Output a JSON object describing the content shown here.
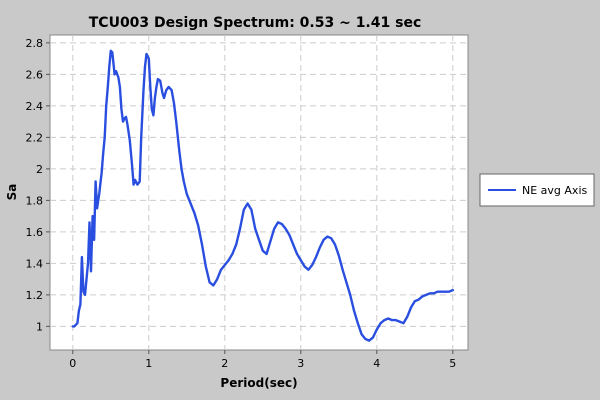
{
  "chart_data": {
    "type": "line",
    "title": "TCU003 Design Spectrum: 0.53 ~ 1.41 sec",
    "xlabel": "Period(sec)",
    "ylabel": "Sa",
    "xlim": [
      -0.3,
      5.2
    ],
    "ylim": [
      0.85,
      2.85
    ],
    "xticks": [
      0,
      1,
      2,
      3,
      4,
      5
    ],
    "xtick_labels": [
      "0",
      "1",
      "2",
      "3",
      "4",
      "5"
    ],
    "yticks": [
      1,
      1.2,
      1.4,
      1.6,
      1.8,
      2,
      2.2,
      2.4,
      2.6,
      2.8
    ],
    "ytick_labels": [
      "1",
      "1.2",
      "1.4",
      "1.6",
      "1.8",
      "2",
      "2.2",
      "2.4",
      "2.6",
      "2.8"
    ],
    "grid": true,
    "legend_position": "right",
    "colors": {
      "series": "#2a4fe0",
      "plot_bg": "#ffffff",
      "page_bg": "#c9c9c9",
      "grid": "#cccccc"
    },
    "series": [
      {
        "name": "NE avg Axis",
        "x": [
          0.0,
          0.02,
          0.04,
          0.06,
          0.08,
          0.1,
          0.12,
          0.14,
          0.16,
          0.18,
          0.2,
          0.22,
          0.24,
          0.26,
          0.28,
          0.3,
          0.32,
          0.35,
          0.38,
          0.4,
          0.42,
          0.44,
          0.46,
          0.48,
          0.5,
          0.52,
          0.55,
          0.57,
          0.6,
          0.62,
          0.64,
          0.66,
          0.68,
          0.7,
          0.72,
          0.75,
          0.78,
          0.8,
          0.82,
          0.85,
          0.88,
          0.9,
          0.93,
          0.95,
          0.97,
          1.0,
          1.02,
          1.04,
          1.06,
          1.08,
          1.1,
          1.12,
          1.15,
          1.18,
          1.2,
          1.23,
          1.26,
          1.3,
          1.33,
          1.36,
          1.4,
          1.43,
          1.46,
          1.5,
          1.55,
          1.6,
          1.65,
          1.7,
          1.75,
          1.8,
          1.85,
          1.9,
          1.95,
          2.0,
          2.05,
          2.1,
          2.15,
          2.2,
          2.25,
          2.3,
          2.35,
          2.4,
          2.45,
          2.5,
          2.55,
          2.6,
          2.65,
          2.7,
          2.75,
          2.8,
          2.85,
          2.9,
          2.95,
          3.0,
          3.05,
          3.1,
          3.15,
          3.2,
          3.25,
          3.3,
          3.35,
          3.4,
          3.45,
          3.5,
          3.55,
          3.6,
          3.65,
          3.7,
          3.75,
          3.8,
          3.85,
          3.9,
          3.95,
          4.0,
          4.05,
          4.1,
          4.15,
          4.2,
          4.25,
          4.3,
          4.35,
          4.4,
          4.45,
          4.5,
          4.55,
          4.6,
          4.65,
          4.7,
          4.75,
          4.8,
          4.85,
          4.9,
          4.95,
          5.0
        ],
        "values": [
          1.0,
          1.0,
          1.01,
          1.02,
          1.1,
          1.14,
          1.44,
          1.22,
          1.2,
          1.3,
          1.4,
          1.66,
          1.35,
          1.7,
          1.55,
          1.92,
          1.75,
          1.85,
          1.98,
          2.1,
          2.2,
          2.4,
          2.52,
          2.65,
          2.75,
          2.74,
          2.6,
          2.62,
          2.58,
          2.52,
          2.38,
          2.3,
          2.32,
          2.33,
          2.28,
          2.18,
          2.02,
          1.9,
          1.93,
          1.9,
          1.92,
          2.2,
          2.5,
          2.65,
          2.73,
          2.7,
          2.52,
          2.38,
          2.34,
          2.45,
          2.52,
          2.57,
          2.56,
          2.48,
          2.45,
          2.5,
          2.52,
          2.5,
          2.42,
          2.3,
          2.12,
          2.0,
          1.92,
          1.84,
          1.78,
          1.72,
          1.64,
          1.52,
          1.38,
          1.28,
          1.26,
          1.3,
          1.36,
          1.39,
          1.42,
          1.46,
          1.52,
          1.62,
          1.74,
          1.78,
          1.74,
          1.62,
          1.55,
          1.48,
          1.46,
          1.54,
          1.62,
          1.66,
          1.65,
          1.62,
          1.58,
          1.52,
          1.46,
          1.42,
          1.38,
          1.36,
          1.39,
          1.44,
          1.5,
          1.55,
          1.57,
          1.56,
          1.52,
          1.45,
          1.36,
          1.28,
          1.2,
          1.1,
          1.02,
          0.95,
          0.92,
          0.91,
          0.93,
          0.98,
          1.02,
          1.04,
          1.05,
          1.04,
          1.04,
          1.03,
          1.02,
          1.06,
          1.12,
          1.16,
          1.17,
          1.19,
          1.2,
          1.21,
          1.21,
          1.22,
          1.22,
          1.22,
          1.22,
          1.23
        ]
      }
    ]
  }
}
